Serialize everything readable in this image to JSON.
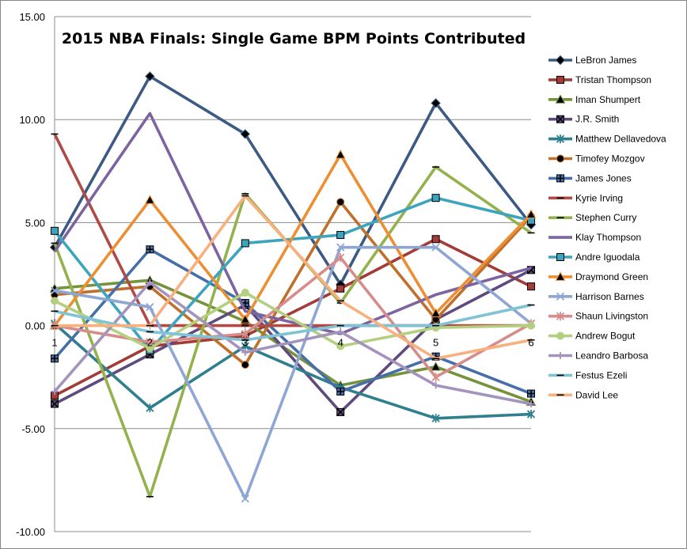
{
  "chart_data": {
    "type": "line",
    "title": "2015 NBA Finals: Single Game BPM Points Contributed",
    "x": [
      1,
      2,
      3,
      4,
      5,
      6
    ],
    "x_tick_labels": [
      "1",
      "2",
      "3",
      "4",
      "5",
      "6"
    ],
    "ylim": [
      -10,
      15
    ],
    "y_tick_labels": [
      "-10.00",
      "-5.00",
      "0.00",
      "5.00",
      "10.00",
      "15.00"
    ],
    "y_ticks": [
      -10,
      -5,
      0,
      5,
      10,
      15
    ],
    "grid": "horizontal",
    "legend_position": "right",
    "series": [
      {
        "name": "LeBron James",
        "color": "#3c5a84",
        "marker": "diamond",
        "values": [
          3.8,
          12.1,
          9.3,
          2.0,
          10.8,
          4.9
        ]
      },
      {
        "name": "Tristan Thompson",
        "color": "#a33b36",
        "marker": "square",
        "values": [
          -3.4,
          -1.0,
          -0.5,
          1.8,
          4.2,
          1.9
        ]
      },
      {
        "name": "Iman Shumpert",
        "color": "#76933c",
        "marker": "triangle",
        "values": [
          1.8,
          2.2,
          0.2,
          -2.9,
          -2.0,
          -3.7
        ]
      },
      {
        "name": "J.R. Smith",
        "color": "#5f4a7e",
        "marker": "x-square",
        "values": [
          -3.8,
          -1.4,
          1.0,
          -4.2,
          0.3,
          2.7
        ]
      },
      {
        "name": "Matthew Dellavedova",
        "color": "#2f7f8e",
        "marker": "star",
        "values": [
          0.1,
          -4.0,
          -1.0,
          -3.0,
          -4.5,
          -4.3
        ]
      },
      {
        "name": "Timofey Mozgov",
        "color": "#c0702a",
        "marker": "circle",
        "values": [
          1.5,
          1.9,
          -1.9,
          6.0,
          0.3,
          5.3
        ]
      },
      {
        "name": "James Jones",
        "color": "#466fa8",
        "marker": "plus-square",
        "values": [
          -1.6,
          3.7,
          1.1,
          -3.2,
          -1.5,
          -3.3
        ]
      },
      {
        "name": "Kyrie Irving",
        "color": "#b04a45",
        "marker": "dash",
        "values": [
          9.3,
          0.0,
          0.0,
          0.0,
          0.0,
          0.0
        ]
      },
      {
        "name": "Stephen Curry",
        "color": "#93b14d",
        "marker": "dash",
        "values": [
          4.0,
          -8.3,
          6.4,
          1.1,
          7.7,
          4.5
        ]
      },
      {
        "name": "Klay Thompson",
        "color": "#7d63a0",
        "marker": "line",
        "values": [
          3.6,
          10.3,
          0.7,
          -0.4,
          1.5,
          2.8
        ]
      },
      {
        "name": "Andre Iguodala",
        "color": "#3ca4bd",
        "marker": "square",
        "values": [
          4.6,
          -1.2,
          4.0,
          4.4,
          6.2,
          5.1
        ]
      },
      {
        "name": "Draymond Green",
        "color": "#ee8e33",
        "marker": "triangle",
        "values": [
          0.0,
          6.1,
          0.3,
          8.3,
          0.6,
          5.4
        ]
      },
      {
        "name": "Harrison Barnes",
        "color": "#8ea6d3",
        "marker": "x",
        "values": [
          1.7,
          0.9,
          -8.4,
          3.8,
          3.8,
          0.1
        ]
      },
      {
        "name": "Shaun Livingston",
        "color": "#d68d8a",
        "marker": "star",
        "values": [
          0.0,
          -0.8,
          -0.4,
          3.3,
          -2.5,
          0.1
        ]
      },
      {
        "name": "Andrew Bogut",
        "color": "#b4cf80",
        "marker": "circle",
        "values": [
          1.2,
          -1.1,
          1.6,
          -1.0,
          -0.1,
          0.0
        ]
      },
      {
        "name": "Leandro Barbosa",
        "color": "#a493bd",
        "marker": "plus",
        "values": [
          -3.2,
          2.1,
          -1.3,
          -0.3,
          -2.9,
          -3.8
        ]
      },
      {
        "name": "Festus Ezeli",
        "color": "#7fc3d4",
        "marker": "dash",
        "values": [
          0.7,
          -0.3,
          -0.7,
          0.0,
          0.0,
          1.0
        ]
      },
      {
        "name": "David Lee",
        "color": "#f7b07e",
        "marker": "dash",
        "values": [
          0.0,
          0.0,
          6.3,
          1.2,
          -1.6,
          -0.7
        ]
      }
    ]
  }
}
